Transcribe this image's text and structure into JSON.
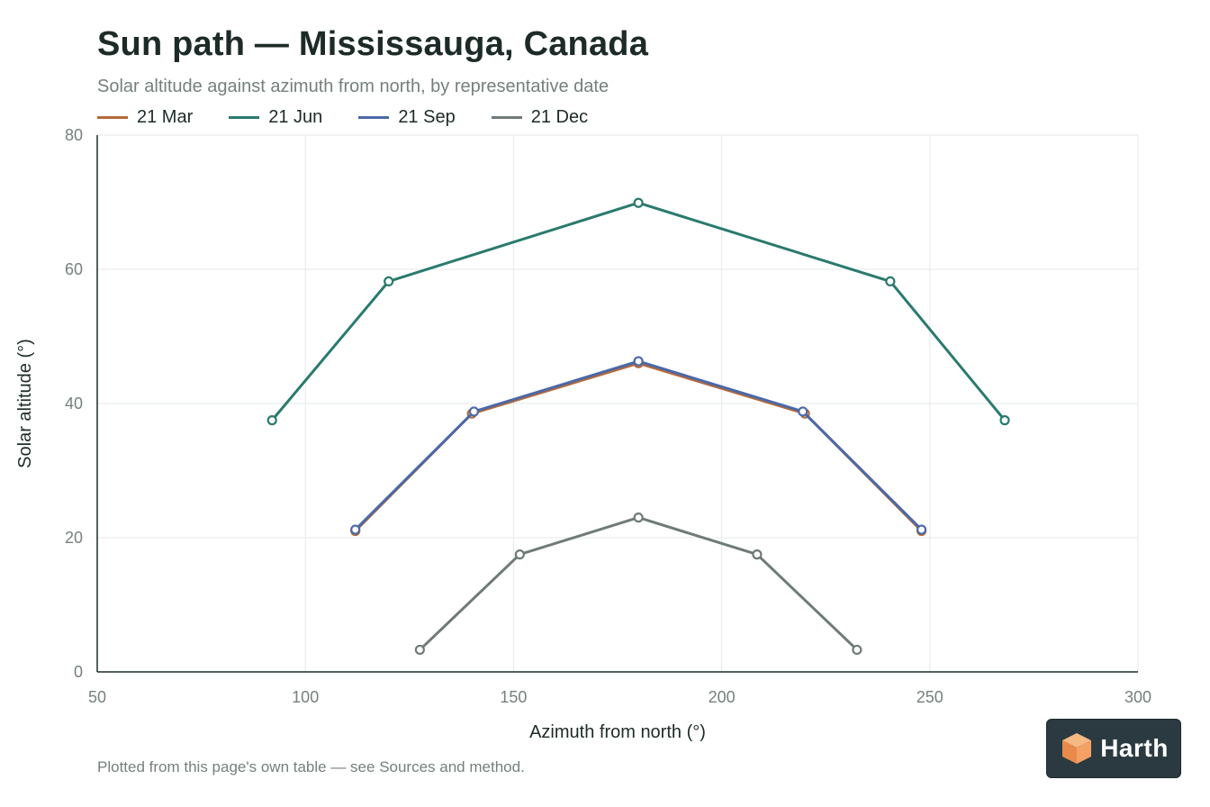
{
  "header": {
    "title": "Sun path — Mississauga, Canada",
    "subtitle": "Solar altitude against azimuth from north, by representative date"
  },
  "footer": {
    "note": "Plotted from this page's own table — see Sources and method."
  },
  "logo": {
    "text": "Harth",
    "icon": "cube-logo-icon"
  },
  "chart_data": {
    "type": "line",
    "xlabel": "Azimuth from north (°)",
    "ylabel": "Solar altitude (°)",
    "xlim": [
      50,
      300
    ],
    "ylim": [
      0,
      80
    ],
    "xticks": [
      50,
      100,
      150,
      200,
      250,
      300
    ],
    "yticks": [
      0,
      20,
      40,
      60,
      80
    ],
    "grid": true,
    "legend_position": "top-left",
    "series": [
      {
        "name": "21 Mar",
        "color": "#b5693a",
        "x": [
          112,
          140,
          180,
          220,
          248
        ],
        "y": [
          21.0,
          38.5,
          46.0,
          38.5,
          21.0
        ]
      },
      {
        "name": "21 Jun",
        "color": "#2a7a6e",
        "x": [
          92,
          120,
          180,
          240.5,
          268
        ],
        "y": [
          37.5,
          58.2,
          69.9,
          58.2,
          37.5
        ]
      },
      {
        "name": "21 Sep",
        "color": "#4a69a8",
        "x": [
          112,
          140.5,
          180,
          219.5,
          248
        ],
        "y": [
          21.2,
          38.8,
          46.3,
          38.8,
          21.2
        ]
      },
      {
        "name": "21 Dec",
        "color": "#6e7b77",
        "x": [
          127.5,
          151.5,
          180,
          208.5,
          232.5
        ],
        "y": [
          3.3,
          17.5,
          23.0,
          17.5,
          3.3
        ]
      }
    ]
  }
}
